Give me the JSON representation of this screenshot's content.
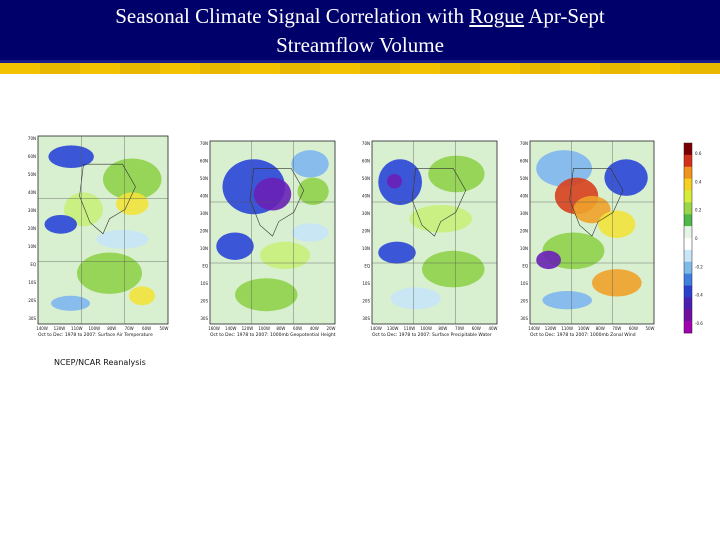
{
  "title": {
    "line1_prefix": "Seasonal Climate Signal Correlation with ",
    "line1_underlined": "Rogue",
    "line1_suffix": " Apr-Sept",
    "line2": "Streamflow Volume"
  },
  "maps": [
    {
      "caption": "Oct to Dec: 1978 to 2007: Surface Air Temperature",
      "lat_labels": [
        "70N",
        "60N",
        "50N",
        "40N",
        "30N",
        "20N",
        "10N",
        "EQ",
        "10S",
        "20S",
        "30S"
      ],
      "lon_labels": [
        "140W",
        "130W",
        "110W",
        "100W",
        "80W",
        "70W",
        "60W",
        "50W"
      ]
    },
    {
      "caption": "Oct to Dec: 1978 to 2007: 1000mb Geopotential Height",
      "lat_labels": [
        "70N",
        "60N",
        "50N",
        "40N",
        "30N",
        "20N",
        "10N",
        "EQ",
        "10S",
        "20S",
        "30S"
      ],
      "lon_labels": [
        "160W",
        "140W",
        "120W",
        "100W",
        "80W",
        "60W",
        "40W",
        "20W"
      ]
    },
    {
      "caption": "Oct to Dec: 1978 to 2007: Surface Precipitable Water",
      "lat_labels": [
        "70N",
        "60N",
        "50N",
        "40N",
        "30N",
        "20N",
        "10N",
        "EQ",
        "10S",
        "20S",
        "30S"
      ],
      "lon_labels": [
        "140W",
        "130W",
        "110W",
        "100W",
        "80W",
        "70W",
        "60W",
        "40W"
      ]
    },
    {
      "caption": "Oct to Dec: 1978 to 2007: 1000mb Zonal Wind",
      "lat_labels": [
        "70N",
        "60N",
        "50N",
        "40N",
        "30N",
        "20N",
        "10N",
        "EQ",
        "10S",
        "20S",
        "30S"
      ],
      "lon_labels": [
        "140W",
        "130W",
        "110W",
        "100W",
        "80W",
        "70W",
        "60W",
        "50W"
      ]
    }
  ],
  "colorbar": {
    "labels": [
      "0.6",
      "0.4",
      "0.2",
      "0",
      "-0.2",
      "-0.4",
      "-0.6"
    ],
    "colors": [
      "#7a0000",
      "#d2301a",
      "#f0941e",
      "#f6d21e",
      "#d6ec3a",
      "#9ad64a",
      "#4fb848",
      "#e6f4e6",
      "#ffffff",
      "#c8e6f6",
      "#7fbbe9",
      "#3f7fe0",
      "#2a3fd0",
      "#4a20b0",
      "#7010a0",
      "#a000b0"
    ]
  },
  "source": "NCEP/NCAR Reanalysis"
}
